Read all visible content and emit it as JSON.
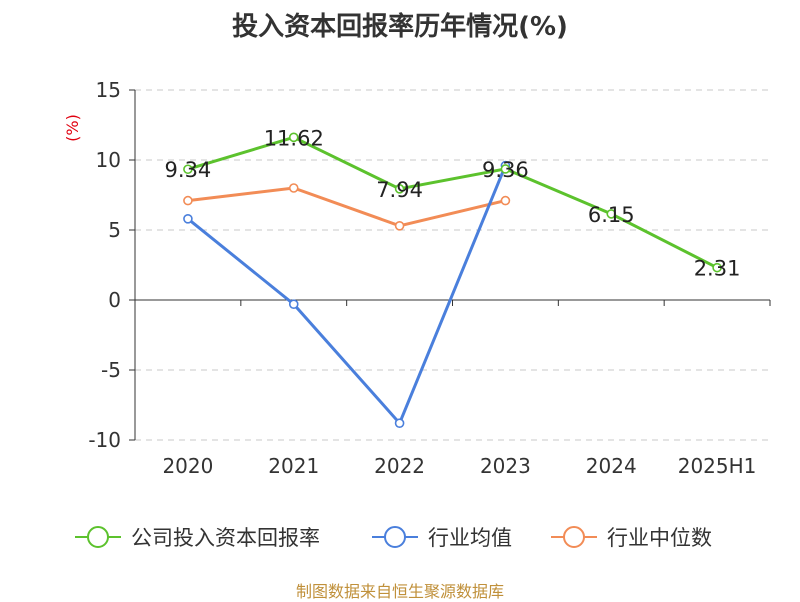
{
  "chart_data": {
    "type": "line",
    "title": "投入资本回报率历年情况(%)",
    "ylabel": "(%)",
    "xlabel": "",
    "categories": [
      "2020",
      "2021",
      "2022",
      "2023",
      "2024",
      "2025H1"
    ],
    "ylim": [
      -10,
      15
    ],
    "yticks": [
      15,
      10,
      5,
      0,
      -5,
      -10
    ],
    "grid": true,
    "legend_position": "bottom",
    "series": [
      {
        "name": "公司投入资本回报率",
        "color": "#5cc22d",
        "values": [
          9.34,
          11.62,
          7.94,
          9.36,
          6.15,
          2.31
        ],
        "labels": [
          "9.34",
          "11.62",
          "7.94",
          "9.36",
          "6.15",
          "2.31"
        ]
      },
      {
        "name": "行业均值",
        "color": "#4a7fdc",
        "values": [
          5.8,
          -0.3,
          -8.8,
          9.6,
          null,
          null
        ]
      },
      {
        "name": "行业中位数",
        "color": "#f28c56",
        "values": [
          7.1,
          8.0,
          5.3,
          7.1,
          null,
          null
        ]
      }
    ]
  },
  "footer": "制图数据来自恒生聚源数据库"
}
